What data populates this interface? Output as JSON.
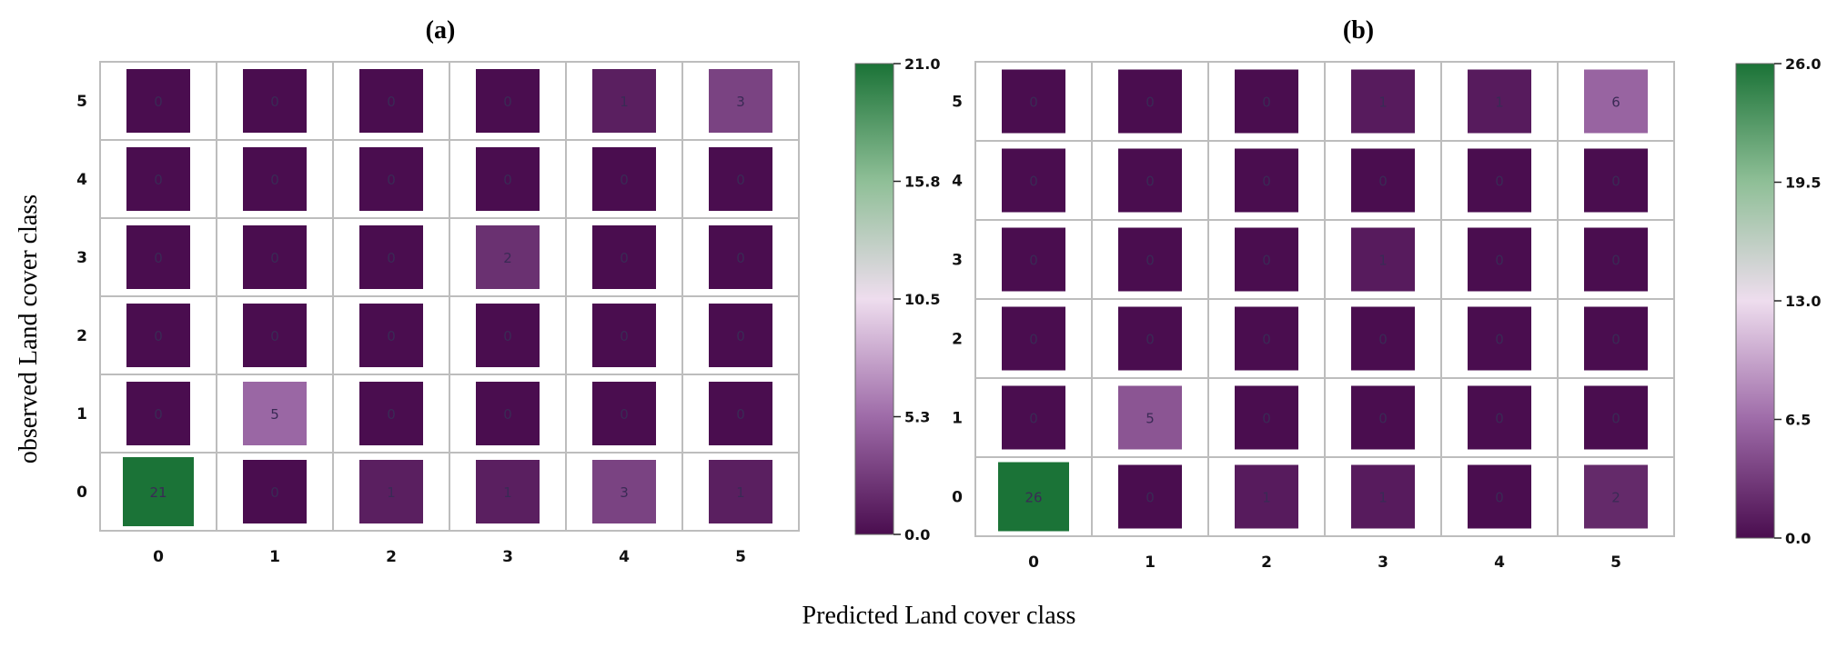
{
  "x_axis_label": "Predicted Land cover class",
  "y_axis_label": "observed Land cover class",
  "colors": {
    "min": "#4a0d4f",
    "lowmid": "#9e6ba8",
    "mid": "#eeddee",
    "highmid": "#8fbf97",
    "max": "#1b7337",
    "grid": "#bdbdbd"
  },
  "chart_data": [
    {
      "type": "heatmap",
      "title": "(a)",
      "x_categories": [
        "0",
        "1",
        "2",
        "3",
        "4",
        "5"
      ],
      "y_categories": [
        "5",
        "4",
        "3",
        "2",
        "1",
        "0"
      ],
      "values": [
        [
          0,
          0,
          0,
          0,
          1,
          3
        ],
        [
          0,
          0,
          0,
          0,
          0,
          0
        ],
        [
          0,
          0,
          0,
          2,
          0,
          0
        ],
        [
          0,
          0,
          0,
          0,
          0,
          0
        ],
        [
          0,
          5,
          0,
          0,
          0,
          0
        ],
        [
          21,
          0,
          1,
          1,
          3,
          1
        ]
      ],
      "color_range": [
        0,
        21
      ],
      "colorbar_ticks": [
        "21.0",
        "15.8",
        "10.5",
        "5.3",
        "0.0"
      ]
    },
    {
      "type": "heatmap",
      "title": "(b)",
      "x_categories": [
        "0",
        "1",
        "2",
        "3",
        "4",
        "5"
      ],
      "y_categories": [
        "5",
        "4",
        "3",
        "2",
        "1",
        "0"
      ],
      "values": [
        [
          0,
          0,
          0,
          1,
          1,
          6
        ],
        [
          0,
          0,
          0,
          0,
          0,
          0
        ],
        [
          0,
          0,
          0,
          1,
          0,
          0
        ],
        [
          0,
          0,
          0,
          0,
          0,
          0
        ],
        [
          0,
          5,
          0,
          0,
          0,
          0
        ],
        [
          26,
          0,
          1,
          1,
          0,
          2
        ]
      ],
      "color_range": [
        0,
        26
      ],
      "colorbar_ticks": [
        "26.0",
        "19.5",
        "13.0",
        "6.5",
        "0.0"
      ]
    }
  ]
}
